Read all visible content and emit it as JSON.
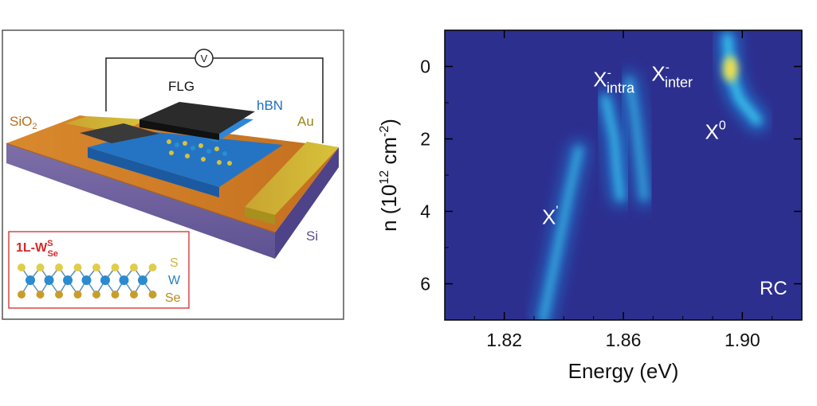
{
  "device_panel": {
    "labels": {
      "voltmeter": "V",
      "flg": "FLG",
      "hbn": "hBN",
      "sio2_main": "SiO",
      "sio2_sub": "2",
      "au": "Au",
      "si": "Si"
    },
    "inset": {
      "title_main": "1L-W",
      "title_sup": "S",
      "title_sub": "Se",
      "legend": [
        "S",
        "W",
        "Se"
      ]
    }
  },
  "chart_data": {
    "type": "heatmap",
    "title": "",
    "xlabel": "Energy (eV)",
    "ylabel_main": "n (10",
    "ylabel_exp": "12",
    "ylabel_unit": " cm",
    "ylabel_exp2": "-2",
    "ylabel_close": ")",
    "xlim": [
      1.8,
      1.92
    ],
    "ylim": [
      7,
      -1
    ],
    "xticks": [
      1.82,
      1.86,
      1.9
    ],
    "xtick_labels": [
      "1.82",
      "1.86",
      "1.90"
    ],
    "yticks": [
      0,
      2,
      4,
      6
    ],
    "ytick_labels": [
      "0",
      "2",
      "4",
      "6"
    ],
    "panel_tag": "RC",
    "colors": {
      "background": "#2d2f8f",
      "mid": "#1e90e6",
      "high": "#3fd2f0",
      "peak": "#f4e04a"
    },
    "peaks": [
      {
        "name": "X'",
        "main": "X",
        "sup": "'",
        "sub": "",
        "path": [
          [
            1.833,
            7
          ],
          [
            1.836,
            5.8
          ],
          [
            1.839,
            4.6
          ],
          [
            1.842,
            3.4
          ],
          [
            1.845,
            2.3
          ]
        ],
        "intensity": 0.55
      },
      {
        "name": "X-intra",
        "main": "X",
        "sup": "-",
        "sub": "intra",
        "path": [
          [
            1.854,
            0.9
          ],
          [
            1.857,
            2.0
          ],
          [
            1.858,
            3.0
          ],
          [
            1.859,
            3.6
          ]
        ],
        "intensity": 0.7
      },
      {
        "name": "X-inter",
        "main": "X",
        "sup": "-",
        "sub": "inter",
        "path": [
          [
            1.862,
            0.4
          ],
          [
            1.864,
            1.4
          ],
          [
            1.866,
            2.8
          ],
          [
            1.867,
            3.6
          ]
        ],
        "intensity": 0.45
      },
      {
        "name": "X0",
        "main": "X",
        "sup": "0",
        "sub": "",
        "path": [
          [
            1.895,
            -0.8
          ],
          [
            1.896,
            0.2
          ],
          [
            1.899,
            0.9
          ],
          [
            1.905,
            1.5
          ]
        ],
        "intensity": 1.0
      }
    ]
  }
}
